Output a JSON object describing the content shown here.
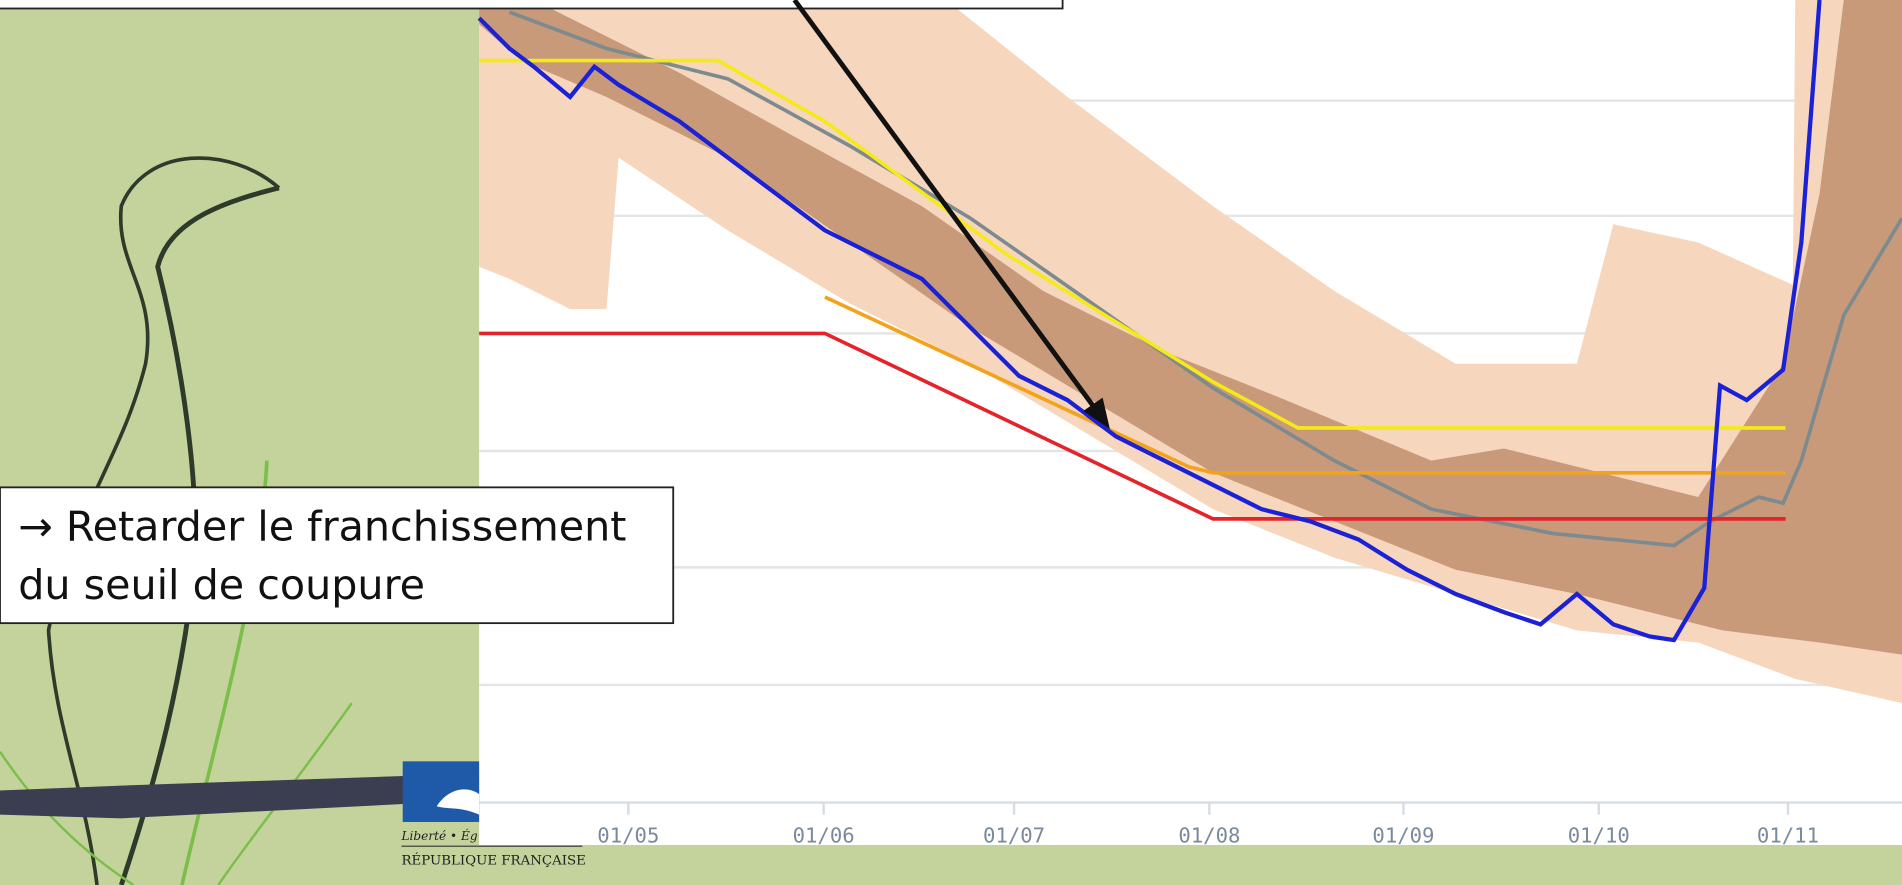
{
  "slide": {
    "callout": {
      "lines": [
        "→ Retarder le franchissement",
        "du seuil de coupure"
      ]
    },
    "axis": {
      "ticks": [
        "01/05",
        "01/06",
        "01/07",
        "01/08",
        "01/09",
        "01/10",
        "01/11"
      ]
    },
    "logo": {
      "motto": "Liberté • Ég",
      "name": "RÉPUBLIQUE FRANÇAISE"
    }
  }
}
